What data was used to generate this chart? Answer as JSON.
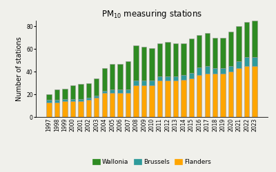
{
  "years": [
    "1997",
    "1998",
    "1999",
    "2000",
    "2001",
    "2002",
    "2003",
    "2004",
    "2005",
    "2006",
    "2007",
    "2008",
    "2009",
    "2010",
    "2011",
    "2012",
    "2013",
    "2014",
    "2015",
    "2016",
    "2017",
    "2018",
    "2019",
    "2020",
    "2021",
    "2022",
    "2023"
  ],
  "flanders": [
    13,
    13,
    14,
    14,
    14,
    15,
    17,
    21,
    21,
    21,
    21,
    28,
    28,
    28,
    32,
    32,
    32,
    33,
    34,
    37,
    38,
    38,
    38,
    40,
    43,
    45,
    45
  ],
  "brussels": [
    2,
    2,
    2,
    2,
    2,
    2,
    2,
    2,
    3,
    3,
    3,
    4,
    4,
    4,
    4,
    4,
    4,
    4,
    5,
    7,
    7,
    5,
    5,
    5,
    6,
    8,
    8
  ],
  "wallonia": [
    5,
    9,
    9,
    12,
    13,
    13,
    15,
    20,
    23,
    23,
    25,
    31,
    30,
    29,
    29,
    30,
    29,
    28,
    30,
    28,
    29,
    27,
    27,
    30,
    31,
    31,
    32
  ],
  "colors": {
    "flanders": "#FFA500",
    "brussels": "#2E9B9B",
    "wallonia": "#2E8B22"
  },
  "title": "PM$_{10}$ measuring stations",
  "ylabel": "Number of stations",
  "ylim": [
    0,
    85
  ],
  "yticks": [
    0,
    20,
    40,
    60,
    80
  ],
  "background_color": "#f0f0eb",
  "bar_edge_color": "#999999",
  "bar_linewidth": 0.4
}
